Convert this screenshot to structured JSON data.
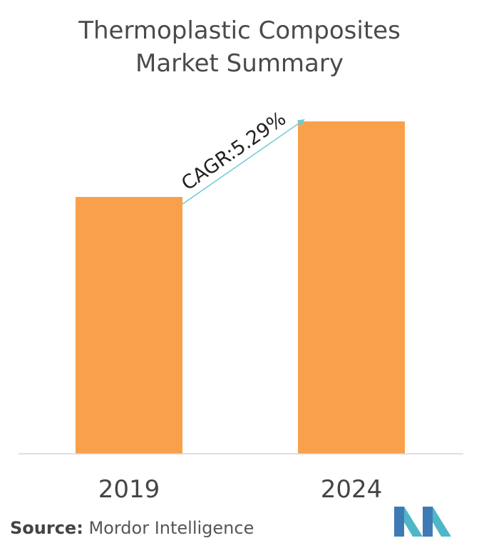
{
  "title_line1": "Thermoplastic Composites",
  "title_line2": "Market Summary",
  "chart_data": {
    "type": "bar",
    "categories": [
      "2019",
      "2024"
    ],
    "values": [
      100,
      129.4
    ],
    "annotation": "CAGR:5.29%",
    "bar_color": "#F9A04B",
    "arrow_color": "#6ECBD5",
    "ylim": [
      0,
      135
    ],
    "grid": false
  },
  "source": {
    "label": "Source:",
    "value": "Mordor Intelligence"
  },
  "logo": {
    "colors": [
      "#3E7BB5",
      "#4FB6C8"
    ]
  }
}
